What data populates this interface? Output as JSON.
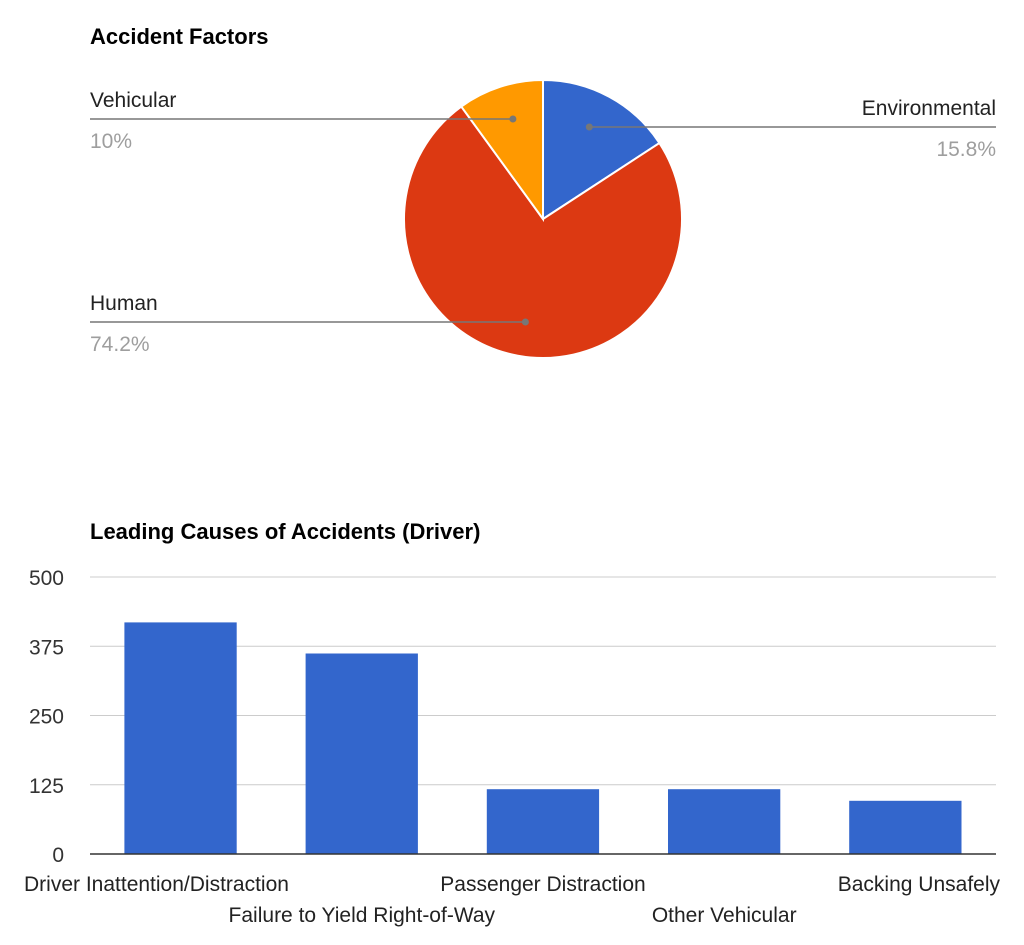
{
  "chart_data": [
    {
      "type": "pie",
      "title": "Accident Factors",
      "slices": [
        {
          "label": "Environmental",
          "value": 15.8,
          "display": "15.8%",
          "color": "#3366cc"
        },
        {
          "label": "Human",
          "value": 74.2,
          "display": "74.2%",
          "color": "#dc3912"
        },
        {
          "label": "Vehicular",
          "value": 10,
          "display": "10%",
          "color": "#ff9900"
        }
      ],
      "legend": "labeled"
    },
    {
      "type": "bar",
      "title": "Leading Causes of Accidents (Driver)",
      "categories": [
        "Driver Inattention/Distraction",
        "Failure to Yield Right-of-Way",
        "Passenger Distraction",
        "Other Vehicular",
        "Backing Unsafely"
      ],
      "values": [
        418,
        362,
        117,
        117,
        96
      ],
      "color": "#3366cc",
      "ylim": [
        0,
        500
      ],
      "yticks": [
        "0",
        "125",
        "250",
        "375",
        "500"
      ],
      "grid": true,
      "xlabel": "",
      "ylabel": ""
    }
  ]
}
